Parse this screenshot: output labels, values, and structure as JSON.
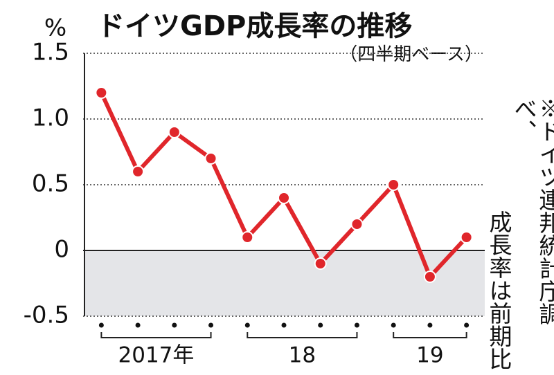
{
  "chart_data": {
    "type": "line",
    "title": "ドイツGDP成長率の推移",
    "subtitle": "（四半期ベース）",
    "y_unit": "%",
    "note": [
      "※ドイツ連邦統計庁調べ、",
      "成長率は前期比"
    ],
    "categories": [
      null,
      null,
      null,
      null,
      null,
      null,
      null,
      null,
      null,
      null,
      null
    ],
    "year_groups": [
      {
        "label": "2017年",
        "count": 4
      },
      {
        "label": "18",
        "count": 4
      },
      {
        "label": "19",
        "count": 3
      }
    ],
    "series": [
      {
        "color": "#e0262b",
        "values": [
          1.2,
          0.6,
          0.9,
          0.7,
          0.1,
          0.4,
          -0.1,
          0.2,
          0.5,
          -0.2,
          0.1
        ]
      }
    ],
    "ylim": [
      -0.5,
      1.5
    ],
    "yticks": [
      1.5,
      {
        "value": 1,
        "label": "1.0"
      },
      0.5,
      0,
      -0.5
    ],
    "grid": true
  }
}
